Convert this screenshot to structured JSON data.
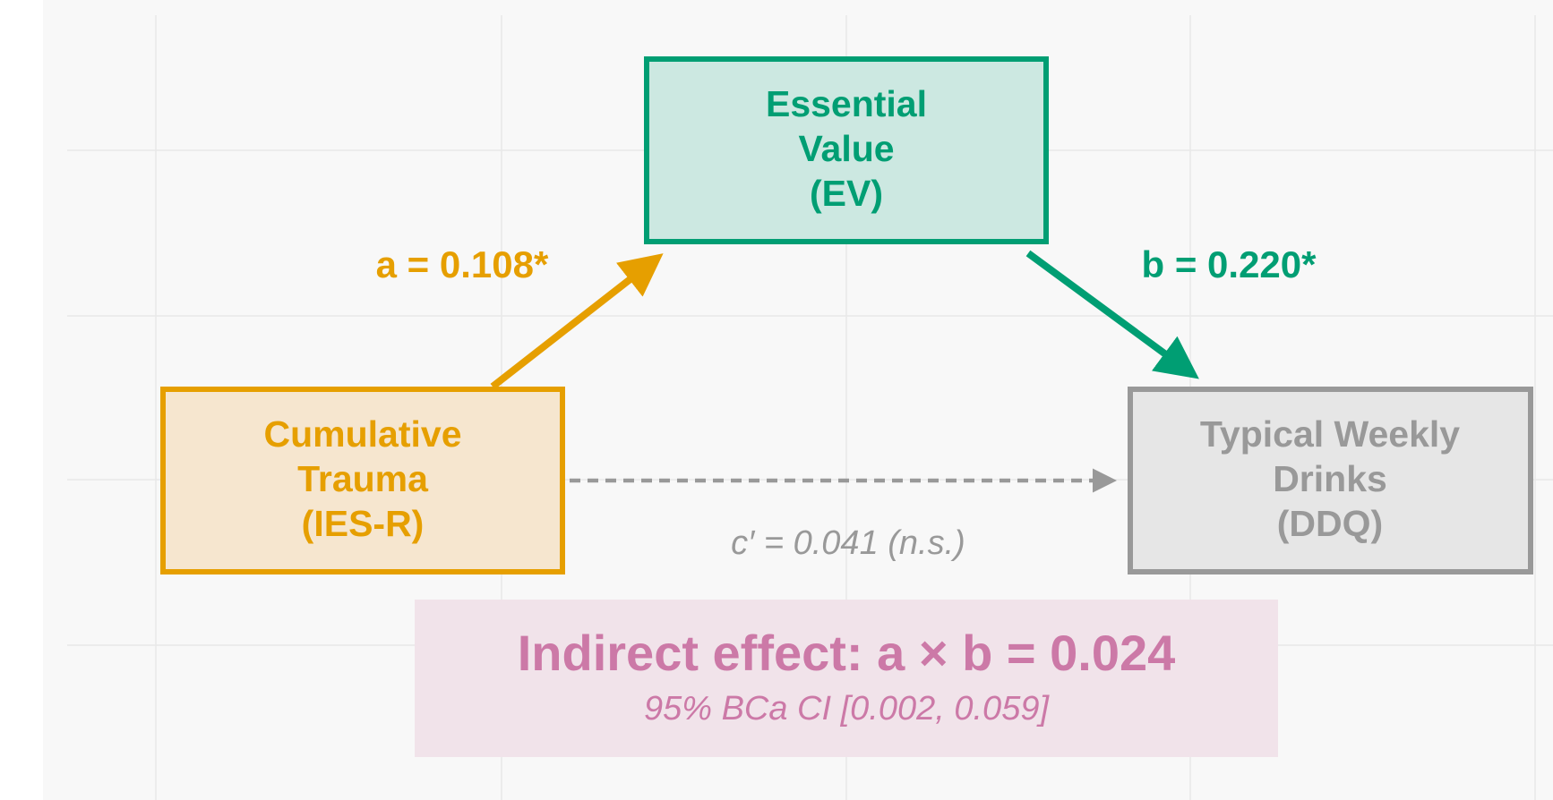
{
  "nodes": [
    {
      "lines": [
        "Essential",
        "Value",
        "(EV)"
      ]
    },
    {
      "lines": [
        "Cumulative",
        "Trauma",
        "(IES-R)"
      ]
    },
    {
      "lines": [
        "Typical Weekly",
        "Drinks",
        "(DDQ)"
      ]
    }
  ],
  "paths": {
    "a": "a = 0.108*",
    "b": "b = 0.220*",
    "c_prime": "c′ = 0.041 (n.s.)"
  },
  "indirect": {
    "title": "Indirect effect: a × b = 0.024",
    "ci": "95% BCa CI [0.002, 0.059]"
  }
}
